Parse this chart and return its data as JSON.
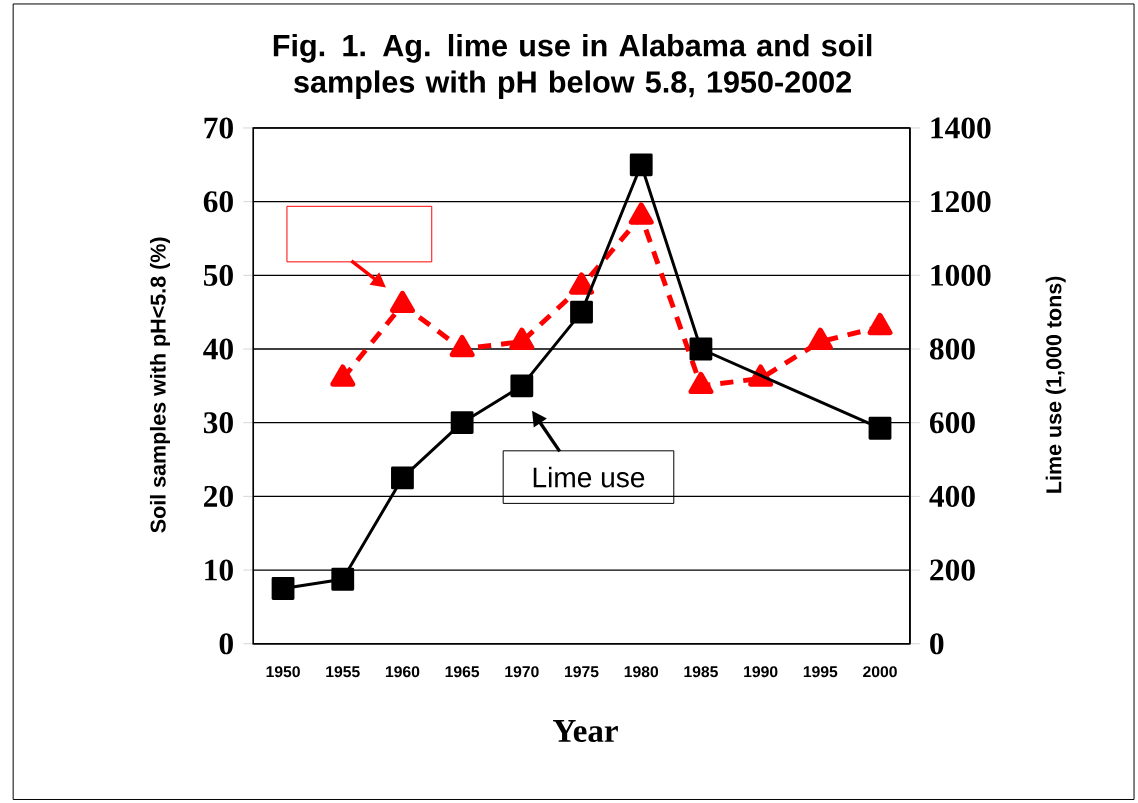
{
  "chart_data": {
    "type": "line",
    "title": "Fig. 1.  Ag. lime use in Alabama and soil samples with pH below 5.8, 1950-2002",
    "xlabel": "Year",
    "ylabel": "Soil samples with pH<5.8 (%)",
    "y2label": "Lime use (1,000 tons)",
    "categories": [
      "1950",
      "1955",
      "1960",
      "1965",
      "1970",
      "1975",
      "1980",
      "1985",
      "1990",
      "1995",
      "2000"
    ],
    "series": [
      {
        "color": "#ff0000",
        "marker": "triangle",
        "line_style": "dashed",
        "values": [
          null,
          36,
          46,
          40,
          41,
          48.5,
          58,
          35,
          36,
          41,
          43
        ]
      },
      {
        "name": "Lime use",
        "color": "#000000",
        "marker": "square",
        "line_style": "solid",
        "axis": "y2",
        "values": [
          150,
          175,
          450,
          600,
          700,
          900,
          1300,
          800,
          null,
          null,
          585
        ]
      }
    ],
    "ylim": [
      0,
      70
    ],
    "yticks": [
      0,
      10,
      20,
      30,
      40,
      50,
      60,
      70
    ],
    "y2lim": [
      0,
      1400
    ],
    "y2ticks": [
      0,
      200,
      400,
      600,
      800,
      1000,
      1200,
      1400
    ],
    "grid": "y"
  }
}
